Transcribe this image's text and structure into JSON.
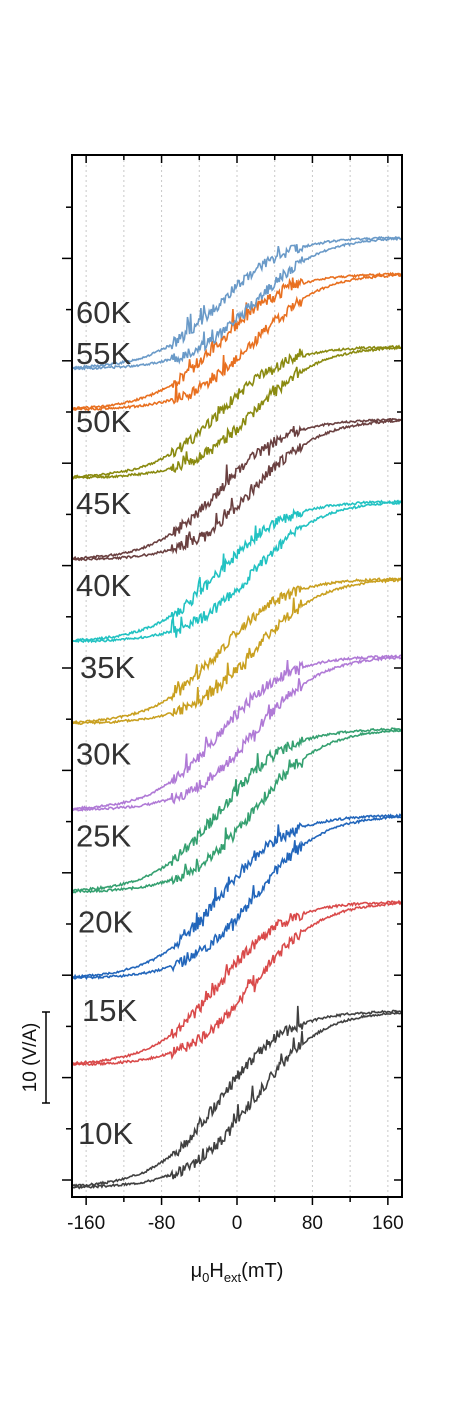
{
  "chart_data": {
    "type": "line",
    "title": "",
    "xlabel": {
      "base": "μ",
      "sub1": "0",
      "mid": "H",
      "sub2": "ext",
      "tail": "(mT)"
    },
    "ylabel": "",
    "xlim": [
      -175,
      175
    ],
    "x_ticks": [
      -160,
      -80,
      0,
      80,
      160
    ],
    "x_tick_labels": [
      "-160",
      "-80",
      "0",
      "80",
      "160"
    ],
    "grid": "vertical dotted lines",
    "scale_bar": {
      "label": "10 (V/A)",
      "value": 10,
      "unit": "V/A"
    },
    "series": [
      {
        "name": "10K",
        "color": "#404040",
        "offset": 0,
        "baseline": 0.0,
        "amplitude": 19.5
      },
      {
        "name": "15K",
        "color": "#d94a4a",
        "offset": 20,
        "baseline": 13.5,
        "amplitude": 18.0
      },
      {
        "name": "20K",
        "color": "#2266bb",
        "offset": 40,
        "baseline": 23.0,
        "amplitude": 18.0
      },
      {
        "name": "25K",
        "color": "#35a070",
        "offset": 60,
        "baseline": 32.5,
        "amplitude": 18.0
      },
      {
        "name": "30K",
        "color": "#b07ad6",
        "offset": 80,
        "baseline": 41.5,
        "amplitude": 17.0
      },
      {
        "name": "35K",
        "color": "#c9a020",
        "offset": 100,
        "baseline": 51.0,
        "amplitude": 16.0
      },
      {
        "name": "40K",
        "color": "#22c2c2",
        "offset": 120,
        "baseline": 60.0,
        "amplitude": 15.5
      },
      {
        "name": "45K",
        "color": "#6a4040",
        "offset": 140,
        "baseline": 69.0,
        "amplitude": 15.5
      },
      {
        "name": "50K",
        "color": "#8a8a10",
        "offset": 160,
        "baseline": 78.0,
        "amplitude": 14.5
      },
      {
        "name": "55K",
        "color": "#e87020",
        "offset": 180,
        "baseline": 85.5,
        "amplitude": 15.0
      },
      {
        "name": "60K",
        "color": "#6a9ac8",
        "offset": 200,
        "baseline": 90.0,
        "amplitude": 14.5
      }
    ],
    "note": "Each curve is a hysteresis loop (up/down sweep), stacked vertically with offsets; y values in V/A relative to each curve's baseline."
  }
}
